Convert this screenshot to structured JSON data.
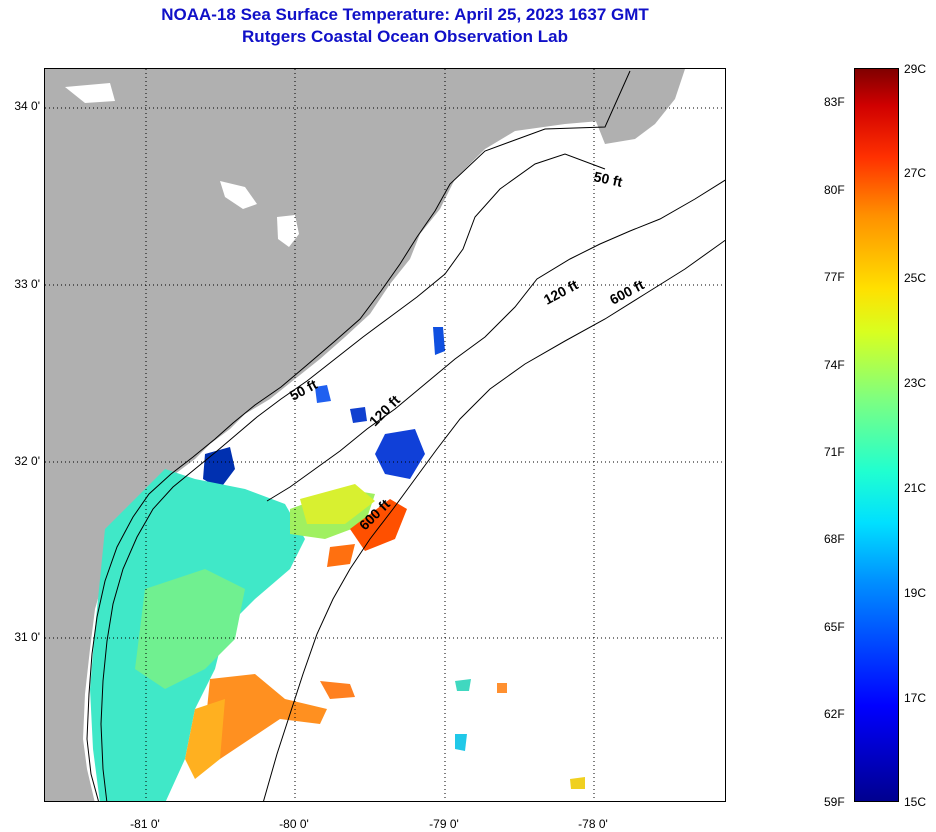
{
  "title": {
    "line1": "NOAA-18 Sea Surface Temperature:  April 25, 2023 1637 GMT",
    "line2": "Rutgers Coastal Ocean Observation Lab"
  },
  "map": {
    "lat_labels": [
      "34 0'",
      "33 0'",
      "32 0'",
      "31 0'"
    ],
    "lon_labels": [
      "-81 0'",
      "-80 0'",
      "-79 0'",
      "-78 0'"
    ],
    "contour_labels": [
      "50 ft",
      "120 ft",
      "600 ft",
      "50 ft",
      "120 ft",
      "600 ft"
    ],
    "land_color": "#b0b0b0",
    "ocean_color": "#ffffff"
  },
  "colorbar": {
    "fahrenheit_labels": [
      "83F",
      "80F",
      "77F",
      "74F",
      "71F",
      "68F",
      "65F",
      "62F",
      "59F"
    ],
    "celsius_labels": [
      "29C",
      "27C",
      "25C",
      "23C",
      "21C",
      "19C",
      "17C",
      "15C"
    ]
  }
}
